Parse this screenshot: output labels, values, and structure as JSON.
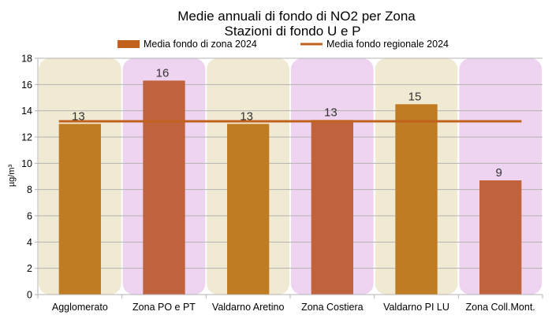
{
  "chart_data": {
    "type": "bar",
    "title": "Medie annuali di fondo di NO2 per Zona",
    "subtitle": "Stazioni di fondo U e P",
    "ylabel": "µg/m³",
    "ylim": [
      0,
      18
    ],
    "yticks": [
      0,
      2,
      4,
      6,
      8,
      10,
      12,
      14,
      16,
      18
    ],
    "categories": [
      "Agglomerato",
      "Zona PO e PT",
      "Valdarno Aretino",
      "Zona Costiera",
      "Valdarno PI LU",
      "Zona Coll.Mont."
    ],
    "series": [
      {
        "name": "Media fondo di zona 2024",
        "values": [
          13,
          16.3,
          13,
          13.3,
          14.5,
          8.7
        ],
        "labels": [
          "13",
          "16",
          "13",
          "13",
          "15",
          "9"
        ],
        "colors": [
          "#c07c22",
          "#c0623c",
          "#c07c22",
          "#c0623c",
          "#c07c22",
          "#c0623c"
        ]
      },
      {
        "name": "Media fondo regionale 2024",
        "type": "line",
        "value": 13.2,
        "color": "#c0621e"
      }
    ],
    "band_colors": [
      "#f0ead2",
      "#eed4f0"
    ],
    "grid": "horizontal",
    "legend_position": "top"
  }
}
